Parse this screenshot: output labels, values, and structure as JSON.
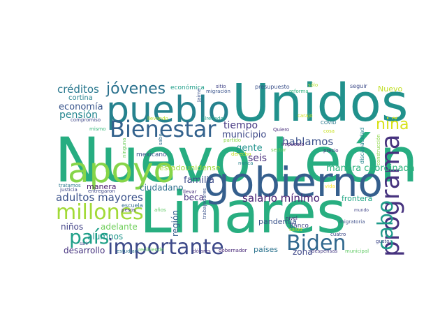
{
  "words": [
    {
      "text": "Nuevo León",
      "color": "#27ad81"
    },
    {
      "text": "Unidos",
      "color": "#21918c"
    },
    {
      "text": "Linares",
      "color": "#28ae80"
    },
    {
      "text": "pueblo",
      "color": "#26828e"
    },
    {
      "text": "gobierno",
      "color": "#355f8d"
    },
    {
      "text": "apoyo",
      "color": "#86d549"
    },
    {
      "text": "Bienestar",
      "color": "#33628d"
    },
    {
      "text": "importante",
      "color": "#3e4a89"
    },
    {
      "text": "Biden",
      "color": "#31688e"
    },
    {
      "text": "programa",
      "color": "#46327e"
    },
    {
      "text": "millones",
      "color": "#a2da37"
    },
    {
      "text": "cabo",
      "color": "#1e9b8a"
    },
    {
      "text": "país",
      "color": "#1fa088"
    },
    {
      "text": "jóvenes",
      "color": "#2c728e"
    },
    {
      "text": "niña",
      "color": "#d8e219"
    },
    {
      "text": "salario mínimo",
      "color": "#482173"
    },
    {
      "text": "hablamos",
      "color": "#3b518b"
    },
    {
      "text": "tiempo",
      "color": "#453781"
    },
    {
      "text": "manera coordinada",
      "color": "#2db27d"
    },
    {
      "text": "adultos mayores",
      "color": "#3b528b"
    },
    {
      "text": "créditos",
      "color": "#2a788e"
    },
    {
      "text": "economía",
      "color": "#39558c"
    },
    {
      "text": "pensión",
      "color": "#24868e"
    },
    {
      "text": "municipio",
      "color": "#3e4989"
    },
    {
      "text": "gente",
      "color": "#20928c"
    },
    {
      "text": "seis",
      "color": "#472d7b"
    },
    {
      "text": "familia",
      "color": "#3d4d8a"
    },
    {
      "text": "ciudadano",
      "color": "#2e6f8e"
    },
    {
      "text": "estadounidense",
      "color": "#9fda3a"
    },
    {
      "text": "pandemia",
      "color": "#3a538b"
    },
    {
      "text": "frontera",
      "color": "#21a685"
    },
    {
      "text": "beca",
      "color": "#46307e"
    },
    {
      "text": "región",
      "color": "#355e8d"
    },
    {
      "text": "niños",
      "color": "#414287"
    },
    {
      "text": "adelante",
      "color": "#6ece58"
    },
    {
      "text": "alumnos",
      "color": "#1f958b"
    },
    {
      "text": "desarrollo",
      "color": "#46337f"
    },
    {
      "text": "países",
      "color": "#2c738e"
    },
    {
      "text": "zona",
      "color": "#3f4889"
    },
    {
      "text": "manera",
      "color": "#48196b"
    },
    {
      "text": "Nuevo",
      "color": "#c0df25"
    },
    {
      "text": "económica",
      "color": "#1f9e89"
    },
    {
      "text": "presupuesto",
      "color": "#3b518b"
    },
    {
      "text": "cortina",
      "color": "#26828e"
    },
    {
      "text": "mexicano",
      "color": "#3b528b"
    },
    {
      "text": "seguir",
      "color": "#3e4c8a"
    },
    {
      "text": "Banco",
      "color": "#404688"
    },
    {
      "text": "escuela",
      "color": "#2f6b8e"
    },
    {
      "text": "discapacidad",
      "color": "#24878e"
    },
    {
      "text": "sitio",
      "color": "#414487"
    },
    {
      "text": "migración",
      "color": "#3a548c"
    },
    {
      "text": "compromiso",
      "color": "#3f4788"
    },
    {
      "text": "llevando",
      "color": "#b8de29"
    },
    {
      "text": "alrededor",
      "color": "#1fa188"
    },
    {
      "text": "Quiero",
      "color": "#472c7a"
    },
    {
      "text": "mismo",
      "color": "#35b779"
    },
    {
      "text": "sabe",
      "color": "#2e6e8e"
    },
    {
      "text": "ninguna",
      "color": "#6ccd5a"
    },
    {
      "text": "partido",
      "color": "#8bd646"
    },
    {
      "text": "derecho",
      "color": "#c2df23"
    },
    {
      "text": "impuesto",
      "color": "#482374"
    },
    {
      "text": "sector",
      "color": "#75d054"
    },
    {
      "text": "precio",
      "color": "#46327e"
    },
    {
      "text": "construcción",
      "color": "#8bd646"
    },
    {
      "text": "tratamos",
      "color": "#2a788e"
    },
    {
      "text": "justicia",
      "color": "#3f4889"
    },
    {
      "text": "entregaron",
      "color": "#3e4989"
    },
    {
      "text": "llevar",
      "color": "#472d7b"
    },
    {
      "text": "trabajadores",
      "color": "#3b528b"
    },
    {
      "text": "años",
      "color": "#5ec962"
    },
    {
      "text": "pesos",
      "color": "#453882"
    },
    {
      "text": "salir",
      "color": "#3f4788"
    },
    {
      "text": "estudian",
      "color": "#2c728e"
    },
    {
      "text": "recibiendo",
      "color": "#5ec962"
    },
    {
      "text": "dólares",
      "color": "#46337f"
    },
    {
      "text": "gobernador",
      "color": "#482878"
    },
    {
      "text": "nivel",
      "color": "#482475"
    },
    {
      "text": "salud",
      "color": "#b5de2b"
    },
    {
      "text": "migratoria",
      "color": "#3c4f8a"
    },
    {
      "text": "cuatro",
      "color": "#3e4989"
    },
    {
      "text": "despensas",
      "color": "#443a83"
    },
    {
      "text": "municipal",
      "color": "#5ec962"
    },
    {
      "text": "gusto",
      "color": "#3f4889"
    },
    {
      "text": "mundo",
      "color": "#414487"
    },
    {
      "text": "vida",
      "color": "#fde725"
    },
    {
      "text": "COVID",
      "color": "#2a788e"
    },
    {
      "text": "cosa",
      "color": "#c8e020"
    },
    {
      "text": "carajo",
      "color": "#d0e11c"
    },
    {
      "text": "reforma",
      "color": "#2db27d"
    },
    {
      "text": "sólo",
      "color": "#b5de2b"
    },
    {
      "text": "Jaime",
      "color": "#3b528b"
    },
    {
      "text": "nunca",
      "color": "#26828e"
    }
  ]
}
